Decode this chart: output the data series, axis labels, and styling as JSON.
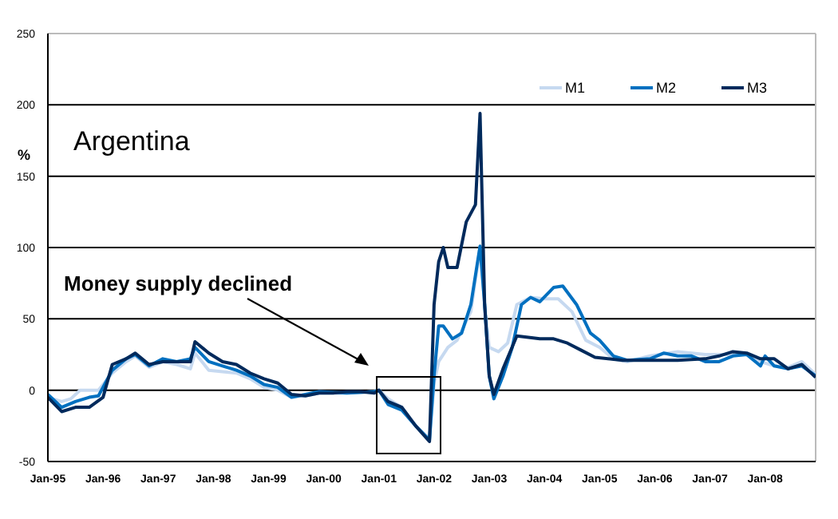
{
  "chart_data": {
    "type": "line",
    "title": "Argentina",
    "ylabel": "%",
    "annotations": [
      "Money supply declined"
    ],
    "xlim": [
      "1995-01",
      "2008-12"
    ],
    "xticks": [
      {
        "value": "1995-01",
        "label": "Jan-95"
      },
      {
        "value": "1996-01",
        "label": "Jan-96"
      },
      {
        "value": "1997-01",
        "label": "Jan-97"
      },
      {
        "value": "1998-01",
        "label": "Jan-98"
      },
      {
        "value": "1999-01",
        "label": "Jan-99"
      },
      {
        "value": "2000-01",
        "label": "Jan-00"
      },
      {
        "value": "2001-01",
        "label": "Jan-01"
      },
      {
        "value": "2002-01",
        "label": "Jan-02"
      },
      {
        "value": "2003-01",
        "label": "Jan-03"
      },
      {
        "value": "2004-01",
        "label": "Jan-04"
      },
      {
        "value": "2005-01",
        "label": "Jan-05"
      },
      {
        "value": "2006-01",
        "label": "Jan-06"
      },
      {
        "value": "2007-01",
        "label": "Jan-07"
      },
      {
        "value": "2008-01",
        "label": "Jan-08"
      }
    ],
    "ylim": [
      -50,
      250
    ],
    "yticks": [
      -50,
      0,
      50,
      100,
      150,
      200,
      250
    ],
    "grid": "y",
    "legend": "top right",
    "marker": "none",
    "line_style": "solid",
    "series": [
      {
        "name": "M1",
        "color": "#c6d9f0",
        "x": [
          "1995-01",
          "1995-04",
          "1995-06",
          "1995-08",
          "1995-12",
          "1996-03",
          "1996-06",
          "1996-08",
          "1996-11",
          "1997-02",
          "1997-05",
          "1997-08",
          "1997-09",
          "1997-12",
          "1998-03",
          "1998-06",
          "1998-09",
          "1998-12",
          "1999-03",
          "1999-06",
          "1999-09",
          "1999-12",
          "2000-06",
          "2000-12",
          "2001-01",
          "2001-03",
          "2001-06",
          "2001-09",
          "2001-12",
          "2002-01",
          "2002-02",
          "2002-04",
          "2002-06",
          "2002-09",
          "2002-11",
          "2002-12",
          "2003-01",
          "2003-03",
          "2003-05",
          "2003-07",
          "2003-10",
          "2004-01",
          "2004-04",
          "2004-07",
          "2004-10",
          "2005-01",
          "2005-04",
          "2005-07",
          "2005-12",
          "2006-06",
          "2006-12",
          "2007-06",
          "2007-09",
          "2007-12",
          "2008-03",
          "2008-06",
          "2008-09",
          "2008-12"
        ],
        "values": [
          -5,
          -8,
          -6,
          0,
          0,
          12,
          20,
          24,
          16,
          20,
          18,
          15,
          26,
          14,
          13,
          12,
          8,
          2,
          0,
          -5,
          -4,
          -2,
          -2,
          -1,
          0,
          -6,
          -12,
          -25,
          -34,
          5,
          20,
          30,
          35,
          55,
          100,
          60,
          30,
          27,
          33,
          60,
          65,
          64,
          64,
          55,
          35,
          30,
          22,
          20,
          24,
          27,
          25,
          25,
          25,
          20,
          17,
          16,
          20,
          11
        ]
      },
      {
        "name": "M2",
        "color": "#0070c0",
        "x": [
          "1995-01",
          "1995-04",
          "1995-07",
          "1995-10",
          "1995-12",
          "1996-03",
          "1996-06",
          "1996-08",
          "1996-11",
          "1997-02",
          "1997-05",
          "1997-08",
          "1997-09",
          "1997-12",
          "1998-03",
          "1998-06",
          "1998-09",
          "1998-12",
          "1999-03",
          "1999-06",
          "1999-09",
          "1999-12",
          "2000-06",
          "2000-12",
          "2001-01",
          "2001-03",
          "2001-06",
          "2001-09",
          "2001-12",
          "2002-01",
          "2002-02",
          "2002-03",
          "2002-05",
          "2002-07",
          "2002-09",
          "2002-11",
          "2002-12",
          "2003-01",
          "2003-02",
          "2003-04",
          "2003-06",
          "2003-08",
          "2003-10",
          "2003-12",
          "2004-03",
          "2004-05",
          "2004-08",
          "2004-11",
          "2005-01",
          "2005-04",
          "2005-07",
          "2005-12",
          "2006-03",
          "2006-06",
          "2006-09",
          "2006-12",
          "2007-03",
          "2007-06",
          "2007-09",
          "2007-12",
          "2008-01",
          "2008-03",
          "2008-06",
          "2008-09",
          "2008-12"
        ],
        "values": [
          -3,
          -12,
          -8,
          -5,
          -4,
          14,
          22,
          25,
          17,
          22,
          20,
          22,
          30,
          20,
          17,
          14,
          10,
          4,
          2,
          -5,
          -3,
          -1,
          -2,
          -1,
          0,
          -10,
          -14,
          -25,
          -35,
          10,
          45,
          45,
          36,
          40,
          60,
          101,
          60,
          10,
          -6,
          10,
          30,
          60,
          65,
          62,
          72,
          73,
          60,
          40,
          35,
          24,
          21,
          22,
          26,
          24,
          24,
          20,
          20,
          24,
          25,
          17,
          24,
          17,
          15,
          17,
          10
        ]
      },
      {
        "name": "M3",
        "color": "#002a5c",
        "x": [
          "1995-01",
          "1995-04",
          "1995-07",
          "1995-10",
          "1996-01",
          "1996-03",
          "1996-06",
          "1996-08",
          "1996-11",
          "1997-02",
          "1997-05",
          "1997-08",
          "1997-09",
          "1997-12",
          "1998-03",
          "1998-06",
          "1998-09",
          "1998-12",
          "1999-03",
          "1999-06",
          "1999-09",
          "1999-12",
          "2000-03",
          "2000-06",
          "2000-09",
          "2000-12",
          "2001-01",
          "2001-03",
          "2001-06",
          "2001-09",
          "2001-12",
          "2002-01",
          "2002-02",
          "2002-03",
          "2002-04",
          "2002-06",
          "2002-08",
          "2002-10",
          "2002-11",
          "2002-12",
          "2003-01",
          "2003-02",
          "2003-04",
          "2003-07",
          "2003-12",
          "2004-03",
          "2004-06",
          "2004-09",
          "2004-12",
          "2005-06",
          "2005-12",
          "2006-06",
          "2006-12",
          "2007-03",
          "2007-06",
          "2007-09",
          "2007-12",
          "2008-03",
          "2008-06",
          "2008-09",
          "2008-12"
        ],
        "values": [
          -5,
          -15,
          -12,
          -12,
          -5,
          18,
          22,
          26,
          18,
          20,
          20,
          20,
          34,
          26,
          20,
          18,
          12,
          8,
          5,
          -3,
          -4,
          -2,
          -2,
          -1,
          -1,
          -2,
          0,
          -8,
          -12,
          -25,
          -36,
          60,
          90,
          100,
          86,
          86,
          118,
          130,
          194,
          60,
          10,
          -3,
          15,
          38,
          36,
          36,
          33,
          28,
          23,
          21,
          21,
          21,
          22,
          24,
          27,
          26,
          22,
          22,
          15,
          18,
          9
        ]
      }
    ]
  }
}
